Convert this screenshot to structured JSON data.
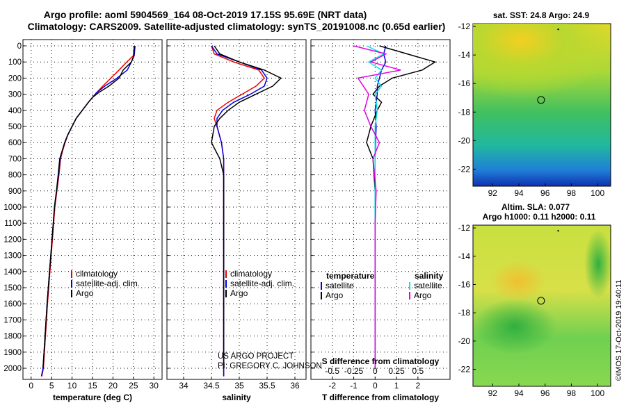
{
  "title": {
    "line1": "Argo profile: aoml 5904569_164 08-Oct-2019 17.15S 95.69E (NRT data)",
    "line2": "Climatology: CARS2009. Satellite-adjusted climatology: synTS_20191008.nc (0.65d earlier)"
  },
  "project_credit": {
    "line1": "US ARGO PROJECT",
    "line2": "PI: GREGORY C. JOHNSON"
  },
  "footer_stamp": "©IMOS 17-Oct-2019 19:40:11",
  "colors": {
    "climatology": "#ee0000",
    "satellite": "#0000dd",
    "argo": "#000000",
    "salinity": "#00e5e5",
    "salinity_argo": "#e000e0"
  },
  "depth_axis": {
    "ticks": [
      0,
      100,
      200,
      300,
      400,
      500,
      600,
      700,
      800,
      900,
      1000,
      1100,
      1200,
      1300,
      1400,
      1500,
      1600,
      1700,
      1800,
      1900,
      2000
    ],
    "ylim": [
      0,
      2080
    ]
  },
  "chart_data": [
    {
      "type": "line",
      "title": "",
      "xlabel": "temperature (deg C)",
      "ylabel": "",
      "xlim": [
        -2,
        32
      ],
      "x_ticks": [
        0,
        5,
        10,
        15,
        20,
        25,
        30
      ],
      "legend": {
        "placement": "bottom-center",
        "items": [
          "climatology",
          "satellite-adj. clim.",
          "Argo"
        ]
      },
      "series": [
        {
          "name": "climatology",
          "color": "#ee0000",
          "x": [
            25.2,
            25.0,
            23,
            21.5,
            19.5,
            17.5,
            16.0,
            15.0,
            14.0,
            12.5,
            11.0,
            10.0,
            9.0,
            8.3,
            7.7,
            7.2,
            6.8,
            6.3,
            5.8,
            5.2,
            4.6,
            4.0,
            3.5,
            3.0,
            2.6
          ],
          "depth": [
            0,
            60,
            110,
            150,
            200,
            250,
            290,
            320,
            350,
            400,
            450,
            500,
            550,
            600,
            650,
            700,
            800,
            900,
            1000,
            1200,
            1400,
            1600,
            1800,
            2000,
            2050
          ]
        },
        {
          "name": "satellite-adj. clim.",
          "color": "#0000dd",
          "x": [
            25.4,
            25.2,
            24.5,
            23.5,
            21.0,
            18.0,
            16.0,
            15.0,
            14.0,
            12.5,
            11.0,
            10.0,
            9.0,
            8.2,
            7.6,
            7.1,
            6.7,
            6.2,
            5.7,
            5.1,
            4.5,
            3.9,
            3.4,
            2.9,
            2.5
          ],
          "depth": [
            0,
            60,
            100,
            150,
            200,
            250,
            290,
            320,
            350,
            400,
            450,
            500,
            550,
            600,
            650,
            700,
            800,
            900,
            1000,
            1200,
            1400,
            1600,
            1800,
            2000,
            2050
          ]
        },
        {
          "name": "Argo",
          "color": "#000000",
          "x": [
            25.2,
            25.1,
            24.5,
            22.5,
            21.5,
            19.0,
            16.5,
            15.0,
            14.0,
            12.5,
            11.0,
            10.0,
            9.0,
            8.2,
            7.6,
            7.0,
            6.6,
            6.2,
            5.7,
            5.1,
            4.5,
            3.9,
            3.4,
            2.9
          ],
          "depth": [
            0,
            60,
            100,
            150,
            200,
            250,
            290,
            320,
            350,
            400,
            450,
            500,
            550,
            600,
            650,
            700,
            800,
            900,
            1000,
            1200,
            1400,
            1600,
            1800,
            2000
          ]
        }
      ]
    },
    {
      "type": "line",
      "title": "",
      "xlabel": "salinity",
      "ylabel": "",
      "xlim": [
        33.7,
        36.2
      ],
      "x_ticks": [
        34,
        34.5,
        35,
        35.5,
        36
      ],
      "legend": {
        "placement": "bottom-center",
        "items": [
          "climatology",
          "satellite-adj. clim.",
          "Argo"
        ]
      },
      "series": [
        {
          "name": "climatology",
          "color": "#ee0000",
          "x": [
            34.5,
            34.55,
            34.9,
            35.35,
            35.45,
            35.3,
            35.05,
            34.8,
            34.6,
            34.55,
            34.6,
            34.68,
            34.72,
            34.72,
            34.72,
            34.72,
            34.72,
            34.72,
            34.72,
            34.72
          ],
          "depth": [
            0,
            50,
            100,
            150,
            200,
            250,
            300,
            350,
            400,
            450,
            500,
            600,
            700,
            800,
            1000,
            1200,
            1400,
            1600,
            1800,
            2050
          ]
        },
        {
          "name": "satellite-adj. clim.",
          "color": "#0000dd",
          "x": [
            34.5,
            34.6,
            35.0,
            35.4,
            35.5,
            35.45,
            35.2,
            34.9,
            34.7,
            34.6,
            34.6,
            34.68,
            34.72,
            34.72,
            34.72,
            34.72,
            34.72,
            34.72,
            34.72,
            34.72
          ],
          "depth": [
            0,
            50,
            100,
            150,
            200,
            250,
            300,
            350,
            400,
            450,
            500,
            600,
            700,
            800,
            1000,
            1200,
            1400,
            1600,
            1800,
            2050
          ]
        },
        {
          "name": "Argo",
          "color": "#000000",
          "x": [
            34.55,
            34.65,
            35.0,
            35.45,
            35.75,
            35.6,
            35.3,
            35.0,
            34.8,
            34.65,
            34.55,
            34.5,
            34.65,
            34.72,
            34.72,
            34.72,
            34.72,
            34.72,
            34.72,
            34.72
          ],
          "depth": [
            0,
            50,
            100,
            150,
            200,
            250,
            300,
            350,
            400,
            450,
            500,
            600,
            700,
            800,
            1000,
            1200,
            1400,
            1600,
            1800,
            2000
          ]
        }
      ]
    },
    {
      "type": "line",
      "title": "",
      "xlabel": "T difference from climatology",
      "ylabel": "",
      "xlim": [
        -3,
        3.5
      ],
      "x_ticks": [
        -2,
        -1,
        0,
        1,
        2
      ],
      "secondary_xlabel": "S difference from climatology",
      "secondary_x_ticks": [
        {
          "label": "-0.5",
          "t": -2
        },
        {
          "label": "-0.25",
          "t": -1
        },
        {
          "label": "0",
          "t": 0
        },
        {
          "label": "0.25",
          "t": 1
        },
        {
          "label": "0.5",
          "t": 2
        }
      ],
      "legend": {
        "placement": "bottom",
        "temperature_header": "temperature",
        "salinity_header": "salinity",
        "items": [
          "satellite",
          "Argo",
          "satellite",
          "Argo"
        ]
      },
      "series": [
        {
          "name": "temperature satellite",
          "color": "#0000dd",
          "x": [
            0.5,
            0.4,
            0.5,
            0.3,
            0.2,
            0.1,
            0.1,
            0.0,
            0.05,
            0.0,
            0.0,
            0.0
          ],
          "depth": [
            0,
            50,
            100,
            150,
            200,
            250,
            300,
            400,
            500,
            700,
            1000,
            2000
          ]
        },
        {
          "name": "temperature Argo",
          "color": "#000000",
          "x": [
            0.2,
            1.5,
            2.8,
            2.2,
            0.8,
            0.2,
            -0.1,
            0.3,
            0.1,
            -0.2,
            -0.4,
            -0.1,
            0.0,
            0.0,
            0.0
          ],
          "depth": [
            0,
            50,
            100,
            150,
            200,
            250,
            300,
            350,
            400,
            500,
            600,
            700,
            900,
            1200,
            2000
          ]
        },
        {
          "name": "salinity satellite",
          "color": "#00e5e5",
          "x": [
            -0.4,
            0.4,
            -0.3,
            0.3,
            0.0,
            0.3,
            0.0,
            0.1,
            0.0,
            0.0,
            0.0
          ],
          "depth": [
            0,
            50,
            100,
            150,
            200,
            250,
            300,
            400,
            500,
            700,
            2000
          ]
        },
        {
          "name": "salinity Argo",
          "color": "#e000e0",
          "x": [
            -1.0,
            0.5,
            -0.2,
            1.2,
            -0.8,
            -0.3,
            -0.5,
            -0.2,
            0.2,
            -0.1,
            0.05,
            0.0,
            0.0
          ],
          "depth": [
            0,
            50,
            100,
            150,
            200,
            300,
            400,
            500,
            600,
            700,
            900,
            1100,
            2000
          ]
        }
      ]
    },
    {
      "type": "heatmap",
      "title": "sat. SST: 24.8 Argo: 24.9",
      "xlabel": "",
      "ylabel": "",
      "x_ticks": [
        92,
        94,
        96,
        98,
        100
      ],
      "y_ticks": [
        -12,
        -14,
        -16,
        -18,
        -20,
        -22
      ],
      "xlim": [
        90.5,
        101
      ],
      "ylim": [
        -23.2,
        -11.8
      ],
      "marker": {
        "lon": 95.69,
        "lat": -17.15
      }
    },
    {
      "type": "heatmap",
      "title_line1": "Altim. SLA: 0.077",
      "title_line2": "Argo h1000: 0.11 h2000: 0.11",
      "xlabel": "",
      "ylabel": "",
      "x_ticks": [
        92,
        94,
        96,
        98,
        100
      ],
      "y_ticks": [
        -12,
        -14,
        -16,
        -18,
        -20,
        -22
      ],
      "xlim": [
        90.5,
        101
      ],
      "ylim": [
        -23.2,
        -11.8
      ],
      "marker": {
        "lon": 95.69,
        "lat": -17.15
      }
    }
  ]
}
